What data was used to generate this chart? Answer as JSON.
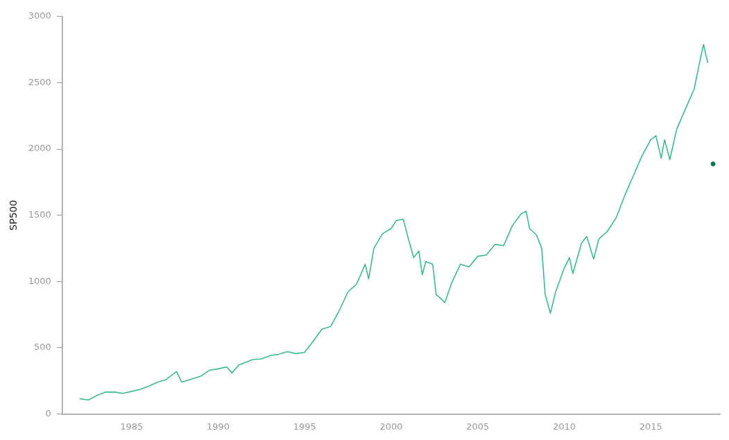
{
  "chart_data": {
    "type": "line",
    "ylabel": "SP500",
    "xlim": [
      1981,
      2019
    ],
    "xticks": [
      1985,
      1990,
      1995,
      2000,
      2005,
      2010,
      2015
    ],
    "ylim": [
      0,
      3000
    ],
    "yticks": [
      0,
      500,
      1000,
      1500,
      2000,
      2500,
      3000
    ],
    "grid": false,
    "legend": false,
    "marker": "none",
    "series": [
      {
        "color": "#3dba8c",
        "x": [
          1982.0,
          1982.5,
          1983,
          1983.5,
          1984,
          1984.5,
          1985,
          1985.5,
          1986,
          1986.5,
          1987,
          1987.6,
          1987.9,
          1988.5,
          1989,
          1989.5,
          1990,
          1990.5,
          1990.8,
          1991.2,
          1992,
          1992.5,
          1993,
          1993.5,
          1994,
          1994.5,
          1995,
          1995.5,
          1996,
          1996.5,
          1997,
          1997.5,
          1998,
          1998.5,
          1998.7,
          1999,
          1999.5,
          2000,
          2000.3,
          2000.7,
          2001,
          2001.3,
          2001.6,
          2001.8,
          2002,
          2002.4,
          2002.6,
          2002.8,
          2003.1,
          2003.5,
          2004,
          2004.5,
          2005,
          2005.5,
          2006,
          2006.5,
          2007,
          2007.5,
          2007.8,
          2008,
          2008.4,
          2008.7,
          2008.9,
          2009.2,
          2009.5,
          2010,
          2010.3,
          2010.5,
          2011,
          2011.3,
          2011.7,
          2012,
          2012.5,
          2013,
          2013.5,
          2014,
          2014.5,
          2015,
          2015.3,
          2015.6,
          2015.8,
          2016.1,
          2016.5,
          2017,
          2017.5,
          2017.9,
          2018.05,
          2018.2,
          2018.3
        ],
        "values": [
          115,
          105,
          140,
          165,
          165,
          155,
          170,
          185,
          210,
          240,
          260,
          320,
          240,
          265,
          285,
          330,
          340,
          355,
          310,
          370,
          410,
          415,
          440,
          450,
          470,
          455,
          465,
          550,
          640,
          660,
          780,
          920,
          980,
          1130,
          1020,
          1250,
          1360,
          1400,
          1460,
          1470,
          1320,
          1180,
          1230,
          1050,
          1150,
          1130,
          900,
          880,
          840,
          990,
          1130,
          1110,
          1190,
          1200,
          1280,
          1270,
          1420,
          1510,
          1530,
          1400,
          1350,
          1250,
          900,
          760,
          920,
          1100,
          1180,
          1060,
          1290,
          1340,
          1170,
          1320,
          1380,
          1480,
          1650,
          1800,
          1950,
          2070,
          2100,
          1930,
          2070,
          1920,
          2150,
          2300,
          2450,
          2700,
          2790,
          2700,
          2650
        ]
      },
      {
        "type": "scatter",
        "color": "#0a7a4a",
        "marker": "circle",
        "x": [
          2018.6
        ],
        "values": [
          1887
        ]
      }
    ]
  }
}
